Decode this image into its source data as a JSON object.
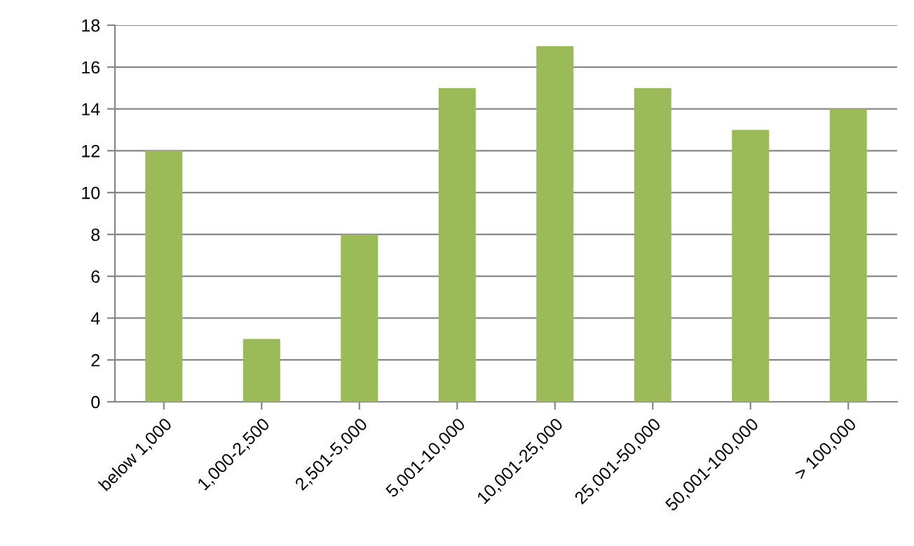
{
  "chart_data": {
    "type": "bar",
    "categories": [
      "below 1,000",
      "1,000-2,500",
      "2,501-5,000",
      "5,001-10,000",
      "10,001-25,000",
      "25,001-50,000",
      "50,001-100,000",
      "> 100,000"
    ],
    "values": [
      12,
      3,
      8,
      15,
      17,
      15,
      13,
      14
    ],
    "color": "#9bbb59",
    "ylim": [
      0,
      18
    ],
    "yticks": [
      0,
      2,
      4,
      6,
      8,
      10,
      12,
      14,
      16,
      18
    ],
    "grid": "y"
  }
}
